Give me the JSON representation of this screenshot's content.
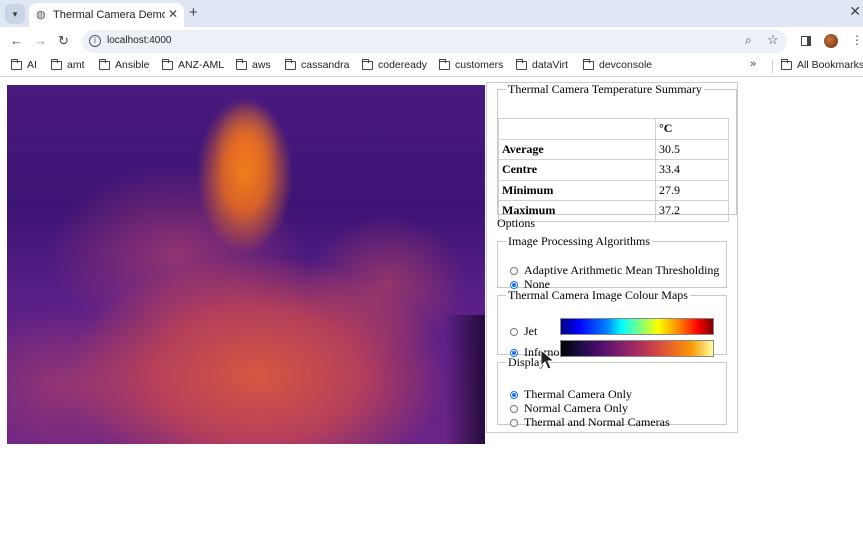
{
  "browser": {
    "tab_title": "Thermal Camera Demon",
    "url": "localhost:4000",
    "bookmarks": [
      "AI",
      "amt",
      "Ansible",
      "ANZ-AML",
      "aws",
      "cassandra",
      "codeready",
      "customers",
      "dataVirt",
      "devconsole"
    ],
    "all_bookmarks": "All Bookmarks"
  },
  "summary": {
    "title": "Thermal Camera Temperature Summary",
    "unit_header": "°C",
    "rows": [
      {
        "label": "Average",
        "value": "30.5"
      },
      {
        "label": "Centre",
        "value": "33.4"
      },
      {
        "label": "Minimum",
        "value": "27.9"
      },
      {
        "label": "Maximum",
        "value": "37.2"
      }
    ]
  },
  "options": {
    "title": "Options",
    "algorithms": {
      "title": "Image Processing Algorithms",
      "items": [
        {
          "label": "Adaptive Arithmetic Mean Thresholding",
          "selected": false
        },
        {
          "label": "None",
          "selected": true
        }
      ]
    },
    "colour_maps": {
      "title": "Thermal Camera Image Colour Maps",
      "items": [
        {
          "label": "Jet",
          "selected": false
        },
        {
          "label": "Inferno",
          "selected": true
        }
      ]
    },
    "display": {
      "title": "Display",
      "items": [
        {
          "label": "Thermal Camera Only",
          "selected": true
        },
        {
          "label": "Normal Camera Only",
          "selected": false
        },
        {
          "label": "Thermal and Normal Cameras",
          "selected": false
        }
      ]
    }
  },
  "colors": {
    "accent": "#1a73e8"
  }
}
